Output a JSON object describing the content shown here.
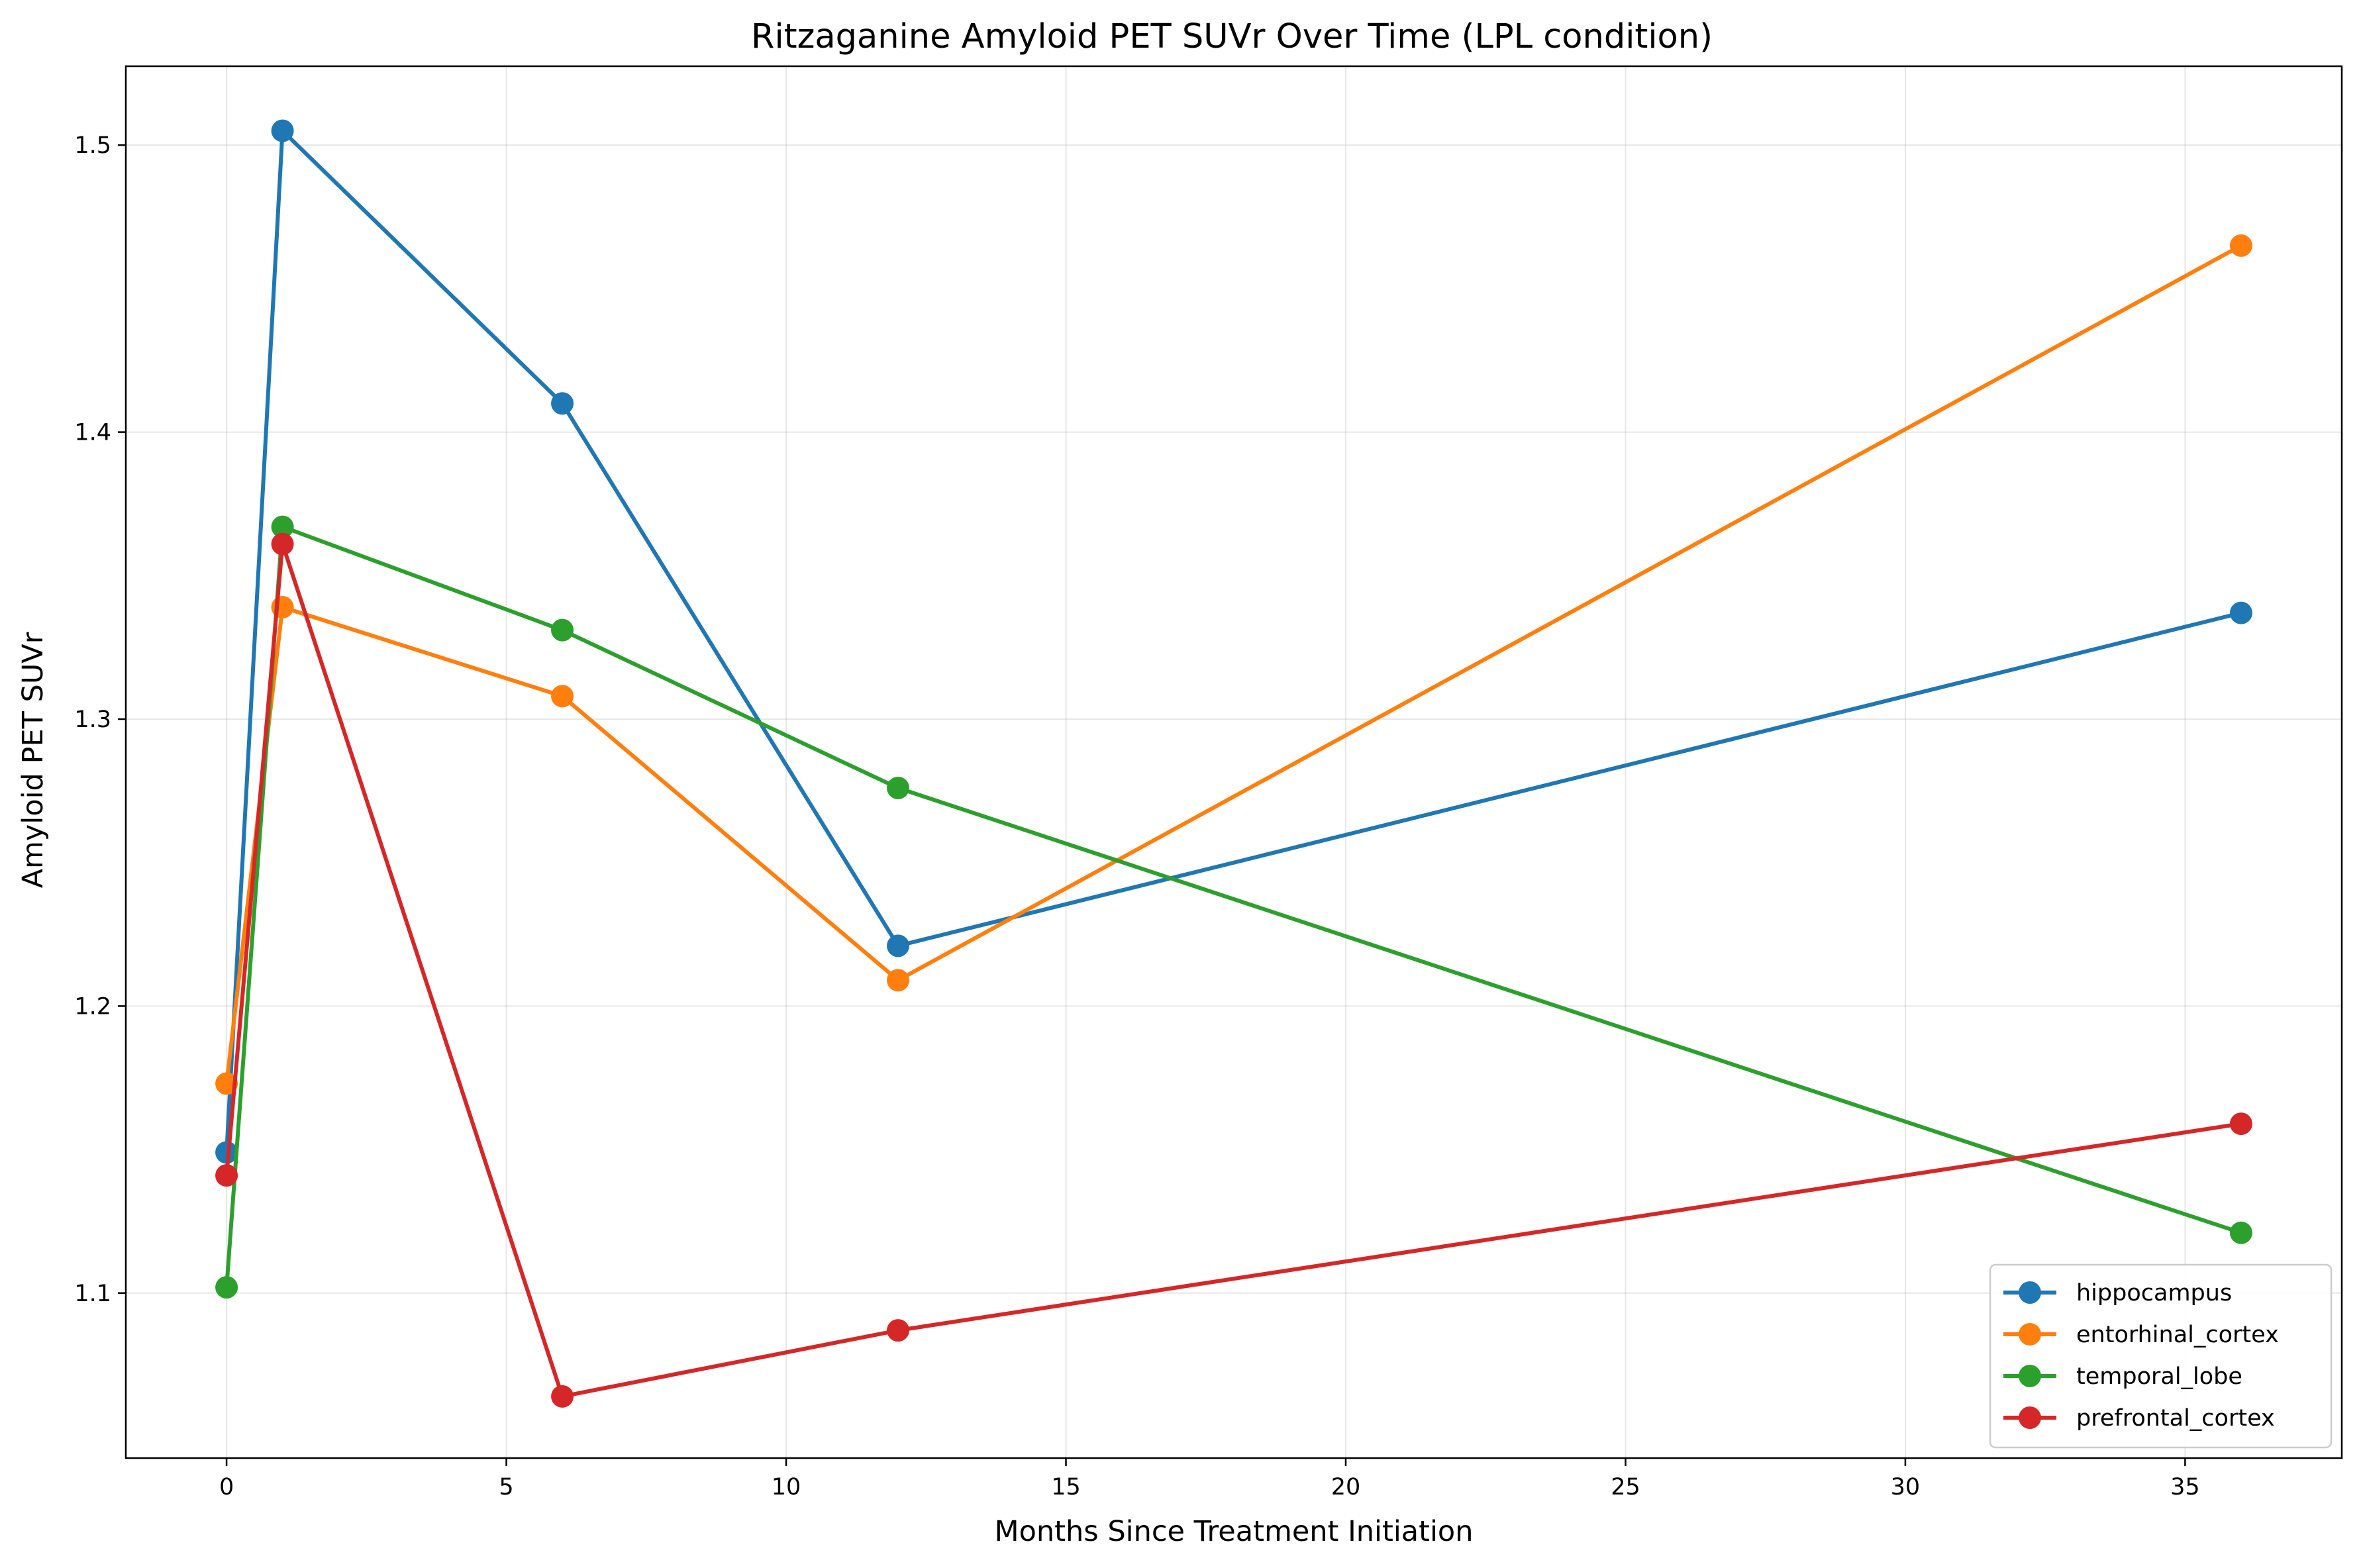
{
  "chart_data": {
    "type": "line",
    "title": "Ritzaganine Amyloid PET SUVr Over Time (LPL condition)",
    "xlabel": "Months Since Treatment Initiation",
    "ylabel": "Amyloid PET SUVr",
    "xlim": [
      -1.8,
      37.8
    ],
    "ylim": [
      1.0425,
      1.5275
    ],
    "xticks": [
      0,
      5,
      10,
      15,
      20,
      25,
      30,
      35
    ],
    "yticks": [
      1.1,
      1.2,
      1.3,
      1.4,
      1.5
    ],
    "xtick_labels": [
      "0",
      "5",
      "10",
      "15",
      "20",
      "25",
      "30",
      "35"
    ],
    "ytick_labels": [
      "1.1",
      "1.2",
      "1.3",
      "1.4",
      "1.5"
    ],
    "grid": true,
    "legend_position": "lower-right",
    "x": [
      0,
      1,
      6,
      12,
      36
    ],
    "series": [
      {
        "name": "hippocampus",
        "color": "#1f77b4",
        "values": [
          1.149,
          1.505,
          1.41,
          1.221,
          1.337
        ]
      },
      {
        "name": "entorhinal_cortex",
        "color": "#ff7f0e",
        "values": [
          1.173,
          1.339,
          1.308,
          1.209,
          1.465
        ]
      },
      {
        "name": "temporal_lobe",
        "color": "#2ca02c",
        "values": [
          1.102,
          1.367,
          1.331,
          1.276,
          1.121
        ]
      },
      {
        "name": "prefrontal_cortex",
        "color": "#d62728",
        "values": [
          1.141,
          1.361,
          1.064,
          1.087,
          1.159
        ]
      }
    ]
  }
}
